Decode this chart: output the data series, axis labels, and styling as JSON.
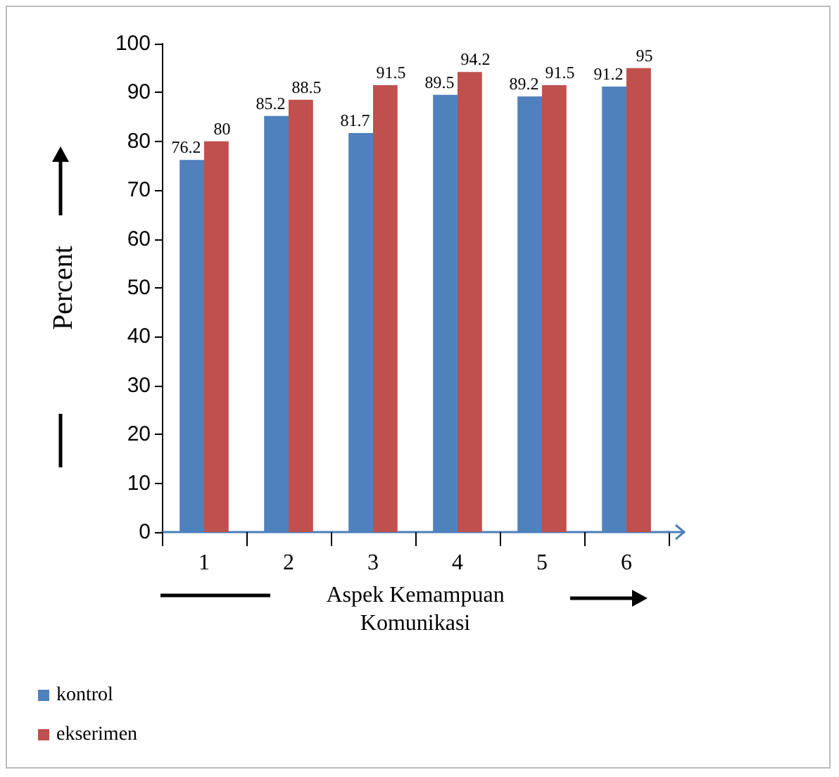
{
  "chart_data": {
    "type": "bar",
    "xlabel": "Aspek Kemampuan\nKomunikasi",
    "ylabel": "Percent",
    "categories": [
      "1",
      "2",
      "3",
      "4",
      "5",
      "6"
    ],
    "series": [
      {
        "name": "kontrol",
        "color": "#4f81bd",
        "values": [
          76.2,
          85.2,
          81.7,
          89.5,
          89.2,
          91.2
        ]
      },
      {
        "name": "ekserimen",
        "color": "#c0504d",
        "values": [
          80,
          88.5,
          91.5,
          94.2,
          91.5,
          95
        ]
      }
    ],
    "ylim": [
      0,
      100
    ],
    "yticks": [
      0,
      10,
      20,
      30,
      40,
      50,
      60,
      70,
      80,
      90,
      100
    ],
    "data_labels": true,
    "legend": "bottom left"
  }
}
